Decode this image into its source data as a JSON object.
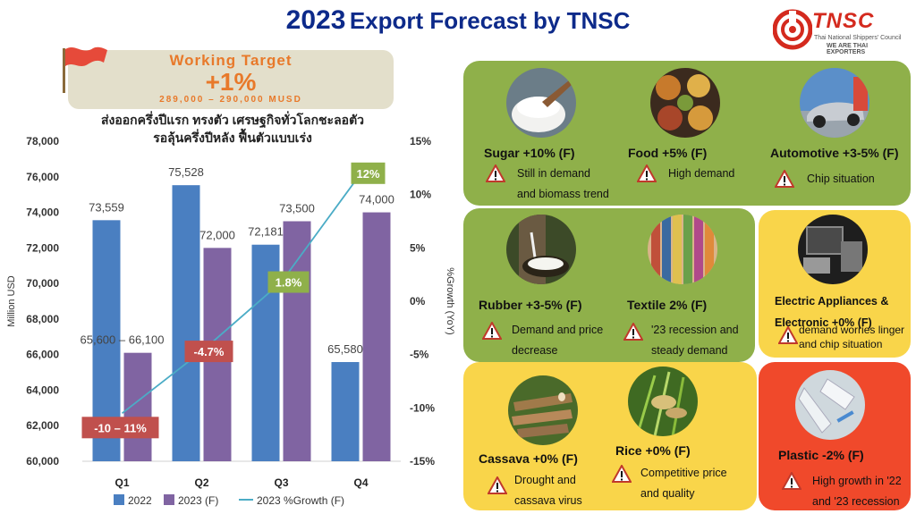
{
  "title": {
    "year": "2023",
    "rest": "Export Forecast by TNSC"
  },
  "logo": {
    "word": "TNSC",
    "sub1": "Thai National Shippers' Council",
    "sub2": "WE ARE THAI EXPORTERS"
  },
  "target": {
    "heading": "Working Target",
    "value": "+1%",
    "range": "289,000 – 290,000 MUSD"
  },
  "thai": {
    "line1": "ส่งออกครึ่งปีแรก ทรงตัว เศรษฐกิจทั่วโลกชะลอตัว",
    "line2": "รอลุ้นครึ่งปีหลัง ฟื้นตัวแบบเร่ง"
  },
  "chart_data": {
    "type": "bar",
    "categories": [
      "Q1",
      "Q2",
      "Q3",
      "Q4"
    ],
    "series": [
      {
        "name": "2022",
        "values": [
          73559,
          75528,
          72181,
          65580
        ],
        "labels": [
          "73,559",
          "75,528",
          "72,181",
          "65,580"
        ],
        "color": "#4a7fc1"
      },
      {
        "name": "2023 (F)",
        "values": [
          66100,
          72000,
          73500,
          74000
        ],
        "labels": [
          "65,600 – 66,100",
          "72,000",
          "73,500",
          "74,000"
        ],
        "color": "#8064a2"
      }
    ],
    "line_series": {
      "name": "2023 %Growth (F)",
      "values": [
        -10.5,
        -4.7,
        1.8,
        12
      ],
      "labels": [
        "-10 – 11%",
        "-4.7%",
        "1.8%",
        "12%"
      ],
      "color": "#4bacc6",
      "label_colors": [
        "#c0504d",
        "#c0504d",
        "#8fb04a",
        "#8fb04a"
      ]
    },
    "ylabel": "Million USD",
    "y2label": "%Growth (YoY)",
    "ylim": [
      60000,
      78000
    ],
    "yticks": [
      "60,000",
      "62,000",
      "64,000",
      "66,000",
      "68,000",
      "70,000",
      "72,000",
      "74,000",
      "76,000",
      "78,000"
    ],
    "y2lim": [
      -15,
      15
    ],
    "y2ticks": [
      "-15%",
      "-10%",
      "-5%",
      "0%",
      "5%",
      "10%",
      "15%"
    ],
    "legend": "bottom"
  },
  "products": [
    {
      "id": "sugar",
      "name": "Sugar +10% (F)",
      "note": [
        "Still in demand",
        "and biomass trend"
      ]
    },
    {
      "id": "food",
      "name": "Food +5% (F)",
      "note": [
        "High demand"
      ]
    },
    {
      "id": "automotive",
      "name": "Automotive +3-5% (F)",
      "note": [
        "Chip situation"
      ]
    },
    {
      "id": "rubber",
      "name": "Rubber +3-5% (F)",
      "note": [
        "Demand and price",
        "decrease"
      ]
    },
    {
      "id": "textile",
      "name": "Textile 2% (F)",
      "note": [
        "'23 recession and",
        "steady demand"
      ]
    },
    {
      "id": "electric",
      "name": "Electric Appliances &",
      "name2": "Electronic +0% (F)",
      "note": [
        "demand worries linger",
        "and chip situation"
      ]
    },
    {
      "id": "cassava",
      "name": "Cassava +0% (F)",
      "note": [
        "Drought and",
        "cassava virus"
      ]
    },
    {
      "id": "rice",
      "name": "Rice +0% (F)",
      "note": [
        "Competitive price",
        "and quality"
      ]
    },
    {
      "id": "plastic",
      "name": "Plastic  -2% (F)",
      "note": [
        "High growth in '22",
        "and '23 recession"
      ]
    }
  ],
  "icons": {
    "warning": "warning-triangle-icon",
    "flag": "red-flag-icon",
    "logo": "tnsc-logo-icon"
  }
}
